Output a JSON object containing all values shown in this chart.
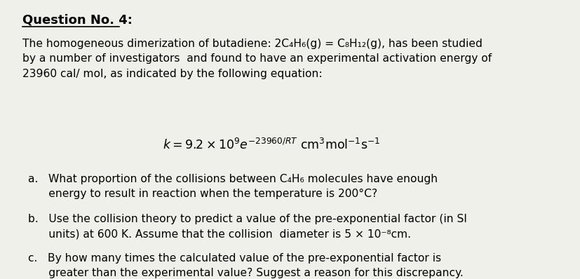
{
  "background_color": "#f0f0eb",
  "title": "Question No. 4:",
  "title_fontsize": 13,
  "body_fontsize": 11.2,
  "equation_fontsize": 12,
  "items_fontsize": 11.2,
  "para1_line1": "The homogeneous dimerization of butadiene: 2C₄H₆(g) = C₈H₁₂(g), has been studied",
  "para1_line2": "by a number of investigators  and found to have an experimental activation energy of",
  "para1_line3": "23960 cal/ mol, as indicated by the following equation:",
  "item_a_line1": "a.   What proportion of the collisions between C₄H₆ molecules have enough",
  "item_a_line2": "      energy to result in reaction when the temperature is 200°C?",
  "item_b_line1": "b.   Use the collision theory to predict a value of the pre-exponential factor (in SI",
  "item_b_line2": "      units) at 600 K. Assume that the collision  diameter is 5 × 10⁻⁸cm.",
  "item_c_line1": "c.   By how many times the calculated value of the pre-exponential factor is",
  "item_c_line2": "      greater than the experimental value? Suggest a reason for this discrepancy."
}
